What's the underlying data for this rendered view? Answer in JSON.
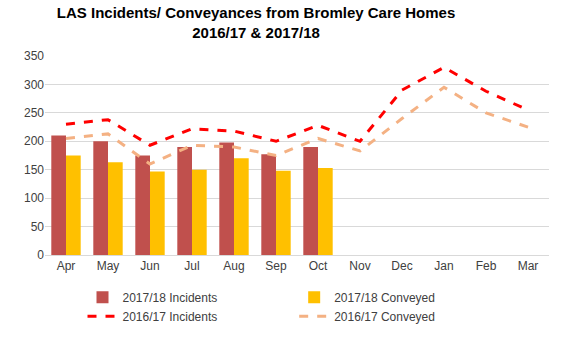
{
  "chart_data": {
    "type": "bar",
    "title": "LAS Incidents/ Conveyances from Bromley Care Homes",
    "subtitle": "2016/17 & 2017/18",
    "categories": [
      "Apr",
      "May",
      "Jun",
      "Jul",
      "Aug",
      "Sep",
      "Oct",
      "Nov",
      "Dec",
      "Jan",
      "Feb",
      "Mar"
    ],
    "series": [
      {
        "name": "2017/18 Incidents",
        "type": "bar",
        "color": "#c0504d",
        "values": [
          210,
          200,
          175,
          190,
          198,
          177,
          190,
          null,
          null,
          null,
          null,
          null
        ]
      },
      {
        "name": "2017/18 Conveyed",
        "type": "bar",
        "color": "#ffc000",
        "values": [
          175,
          163,
          147,
          150,
          170,
          148,
          153,
          null,
          null,
          null,
          null,
          null
        ]
      },
      {
        "name": "2016/17 Incidents",
        "type": "line",
        "line_style": "dashed",
        "color": "#ff0000",
        "values": [
          230,
          238,
          193,
          222,
          218,
          200,
          228,
          200,
          290,
          330,
          288,
          255
        ]
      },
      {
        "name": "2016/17 Conveyed",
        "type": "line",
        "line_style": "dashed",
        "color": "#f4b183",
        "values": [
          205,
          213,
          160,
          193,
          190,
          175,
          205,
          183,
          240,
          295,
          250,
          225
        ]
      }
    ],
    "ylim": [
      0,
      350
    ],
    "yticks": [
      0,
      50,
      100,
      150,
      200,
      250,
      300,
      350
    ],
    "grid": true,
    "legend": "bottom"
  }
}
